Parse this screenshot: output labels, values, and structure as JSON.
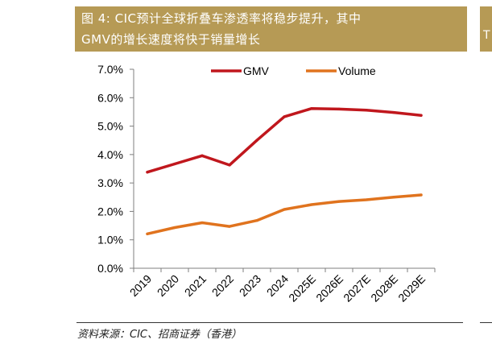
{
  "header": {
    "line1": "图 4: CIC预计全球折叠车渗透率将稳步提升，其中",
    "line2": "GMV的增长速度将快于销量增长",
    "bg_color": "#b69a55",
    "right_strip_glyph": "T"
  },
  "source": "资料来源：CIC、招商证券（香港）",
  "chart_data": {
    "type": "line",
    "categories": [
      "2019",
      "2020",
      "2021",
      "2022",
      "2023",
      "2024",
      "2025E",
      "2026E",
      "2027E",
      "2028E",
      "2029E"
    ],
    "series": [
      {
        "name": "GMV",
        "color": "#c0171d",
        "values": [
          3.38,
          3.67,
          3.96,
          3.63,
          4.5,
          5.33,
          5.62,
          5.6,
          5.56,
          5.48,
          5.38
        ]
      },
      {
        "name": "Volume",
        "color": "#e0731e",
        "values": [
          1.21,
          1.43,
          1.6,
          1.47,
          1.68,
          2.07,
          2.24,
          2.35,
          2.41,
          2.5,
          2.58
        ]
      }
    ],
    "y_ticks": [
      "0.0%",
      "1.0%",
      "2.0%",
      "3.0%",
      "4.0%",
      "5.0%",
      "6.0%",
      "7.0%"
    ],
    "ylim": [
      0,
      7
    ],
    "title": "",
    "xlabel": "",
    "ylabel": "",
    "legend": "top"
  }
}
